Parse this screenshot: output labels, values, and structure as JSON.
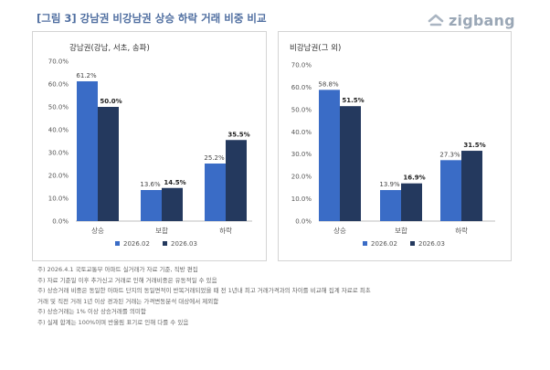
{
  "header": {
    "title": "[그림 3] 강남권 비강남권 상승 하락 거래 비중 비교",
    "brand": "zigbang",
    "brand_color": "#9aa7b6",
    "title_color": "#4f6ea0"
  },
  "legend": {
    "items": [
      "2026.02",
      "2026.03"
    ]
  },
  "chart_data": [
    {
      "type": "bar",
      "title": "강남권(강남, 서초, 송파)",
      "categories": [
        "상승",
        "보합",
        "하락"
      ],
      "series": [
        {
          "name": "2026.02",
          "values": [
            61.2,
            13.6,
            25.2
          ],
          "labels": [
            "61.2%",
            "13.6%",
            "25.2%"
          ],
          "color": "#3a6cc6"
        },
        {
          "name": "2026.03",
          "values": [
            50.0,
            14.5,
            35.5
          ],
          "labels": [
            "50.0%",
            "14.5%",
            "35.5%"
          ],
          "color": "#24395e"
        }
      ],
      "ylim": [
        0,
        70
      ],
      "yticks": [
        "0.0%",
        "10.0%",
        "20.0%",
        "30.0%",
        "40.0%",
        "50.0%",
        "60.0%",
        "70.0%"
      ],
      "grid": false,
      "legend_position": "bottom"
    },
    {
      "type": "bar",
      "title": "비강남권(그 외)",
      "categories": [
        "상승",
        "보합",
        "하락"
      ],
      "series": [
        {
          "name": "2026.02",
          "values": [
            58.8,
            13.9,
            27.3
          ],
          "labels": [
            "58.8%",
            "13.9%",
            "27.3%"
          ],
          "color": "#3a6cc6"
        },
        {
          "name": "2026.03",
          "values": [
            51.5,
            16.9,
            31.5
          ],
          "labels": [
            "51.5%",
            "16.9%",
            "31.5%"
          ],
          "color": "#24395e"
        }
      ],
      "ylim": [
        0,
        70
      ],
      "yticks": [
        "0.0%",
        "10.0%",
        "20.0%",
        "30.0%",
        "40.0%",
        "50.0%",
        "60.0%",
        "70.0%"
      ],
      "grid": false,
      "legend_position": "bottom"
    }
  ],
  "notes": [
    "주) 2026.4.1 국토교통부 아파트 실거래가 자료 기준, 직방 편집",
    "주) 자료 기준일 이후 추가신고 거래로 인해 거래비중은 유동적일 수 있음",
    "주) 상승거래 비중은 동일한 아파트 단지의 동일면적이 반복거래되었을 때 전 1년내 최고 거래가격과의 차이를 비교해 집계 자료로 최초",
    "거래 및 직전 거래 1년 이상 경과된 거래는 가격변동분석 대상에서 제외함",
    "주) 상승거래는 1% 이상 상승거래를 의미함",
    "주) 실제 합계는 100%이며 반올림 표기로 인해 다를 수 있음"
  ]
}
